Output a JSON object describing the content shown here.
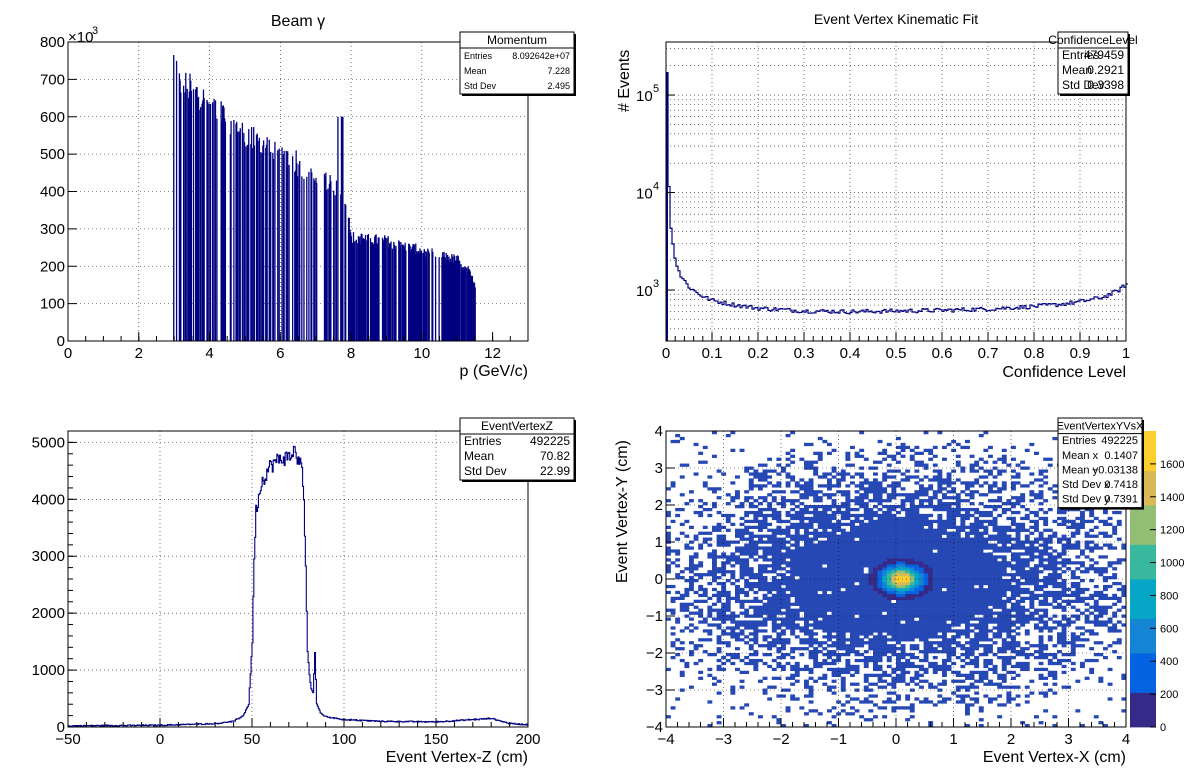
{
  "chart_data": [
    {
      "type": "bar",
      "title": "Beam γ",
      "xlabel": "p (GeV/c)",
      "ylabel": "",
      "xlim": [
        0,
        13
      ],
      "ylim": [
        0,
        800
      ],
      "y_multiplier_label": "×10",
      "y_multiplier_exp": "3",
      "xticks": [
        "0",
        "2",
        "4",
        "6",
        "8",
        "10",
        "12"
      ],
      "yticks": [
        "0",
        "100",
        "200",
        "300",
        "400",
        "500",
        "600",
        "700",
        "800"
      ],
      "grid": true,
      "color": "#000080",
      "stats": {
        "title": "Momentum",
        "rows": [
          {
            "label": "Entries",
            "value": "8.092642e+07"
          },
          {
            "label": "Mean",
            "value": "7.228"
          },
          {
            "label": "Std Dev",
            "value": "2.495"
          }
        ]
      },
      "envelope": [
        [
          2.95,
          770
        ],
        [
          3.1,
          700
        ],
        [
          3.5,
          680
        ],
        [
          4.0,
          640
        ],
        [
          4.5,
          600
        ],
        [
          5.0,
          560
        ],
        [
          5.5,
          530
        ],
        [
          6.0,
          500
        ],
        [
          6.5,
          470
        ],
        [
          7.0,
          450
        ],
        [
          7.5,
          420
        ],
        [
          7.8,
          400
        ],
        [
          8.0,
          280
        ],
        [
          8.5,
          275
        ],
        [
          9.0,
          270
        ],
        [
          9.5,
          255
        ],
        [
          10.0,
          245
        ],
        [
          10.5,
          230
        ],
        [
          11.0,
          220
        ],
        [
          11.3,
          190
        ],
        [
          11.5,
          150
        ]
      ],
      "spikes_note": "sparse populated bins with empty bins between"
    },
    {
      "type": "line",
      "title": "Event Vertex Kinematic Fit",
      "xlabel": "Confidence Level",
      "ylabel": "# Events",
      "xlim": [
        0,
        1
      ],
      "ylim": [
        300,
        350000
      ],
      "log_y": true,
      "xticks": [
        "0",
        "0.1",
        "0.2",
        "0.3",
        "0.4",
        "0.5",
        "0.6",
        "0.7",
        "0.8",
        "0.9",
        "1"
      ],
      "yticks": [
        {
          "base": "10",
          "exp": "3",
          "value": 1000
        },
        {
          "base": "10",
          "exp": "4",
          "value": 10000
        },
        {
          "base": "10",
          "exp": "5",
          "value": 100000
        }
      ],
      "grid": true,
      "color": "#000080",
      "stats": {
        "title": "ConfidenceLevel",
        "rows": [
          {
            "label": "Entries",
            "value": "479459"
          },
          {
            "label": "Mean",
            "value": "0.2921"
          },
          {
            "label": "Std Dev",
            "value": "0.3398"
          }
        ]
      },
      "x": [
        0.0,
        0.005,
        0.01,
        0.02,
        0.03,
        0.05,
        0.08,
        0.1,
        0.15,
        0.2,
        0.3,
        0.4,
        0.5,
        0.6,
        0.7,
        0.8,
        0.85,
        0.9,
        0.95,
        0.98,
        1.0
      ],
      "y": [
        170000,
        8000,
        3500,
        1900,
        1400,
        1050,
        850,
        780,
        700,
        650,
        610,
        600,
        610,
        620,
        640,
        680,
        710,
        760,
        850,
        980,
        1150
      ]
    },
    {
      "type": "line",
      "title": "",
      "xlabel": "Event Vertex-Z (cm)",
      "ylabel": "",
      "xlim": [
        -50,
        200
      ],
      "ylim": [
        0,
        5200
      ],
      "xticks": [
        "−50",
        "0",
        "50",
        "100",
        "150",
        "200"
      ],
      "yticks": [
        "0",
        "1000",
        "2000",
        "3000",
        "4000",
        "5000"
      ],
      "grid": true,
      "color": "#000080",
      "stats": {
        "title": "EventVertexZ",
        "rows": [
          {
            "label": "Entries",
            "value": "492225"
          },
          {
            "label": "Mean",
            "value": "70.82"
          },
          {
            "label": "Std Dev",
            "value": "22.99"
          }
        ]
      },
      "x": [
        -50,
        -30,
        0,
        30,
        40,
        45,
        48,
        50,
        51,
        52,
        55,
        60,
        65,
        70,
        73,
        75,
        77,
        78,
        79,
        80,
        81,
        82,
        83,
        84,
        85,
        87,
        90,
        100,
        120,
        150,
        180,
        190,
        200
      ],
      "y": [
        20,
        25,
        30,
        60,
        100,
        200,
        400,
        1500,
        3000,
        3800,
        4300,
        4600,
        4700,
        4750,
        4850,
        4700,
        4500,
        4000,
        2800,
        1300,
        900,
        700,
        600,
        1300,
        400,
        250,
        180,
        130,
        100,
        90,
        150,
        60,
        40
      ]
    },
    {
      "type": "heatmap",
      "title": "",
      "xlabel": "Event Vertex-X (cm)",
      "ylabel": "Event Vertex-Y (cm)",
      "xlim": [
        -4,
        4
      ],
      "ylim": [
        -4,
        4
      ],
      "zlim": [
        0,
        1800
      ],
      "xticks": [
        "−4",
        "−3",
        "−2",
        "−1",
        "0",
        "1",
        "2",
        "3",
        "4"
      ],
      "yticks": [
        "−4",
        "−3",
        "−2",
        "−1",
        "0",
        "1",
        "2",
        "3",
        "4"
      ],
      "zticks": [
        "0",
        "200",
        "400",
        "600",
        "800",
        "1000",
        "1200",
        "1400",
        "1600"
      ],
      "grid": true,
      "stats": {
        "title": "EventVertexYVsX",
        "rows": [
          {
            "label": "Entries",
            "value": "492225"
          },
          {
            "label": "Mean x",
            "value": "0.1407"
          },
          {
            "label": "Mean y",
            "value": "−0.03138"
          },
          {
            "label": "Std Dev x",
            "value": "0.7418"
          },
          {
            "label": "Std Dev y",
            "value": "0.7391"
          }
        ]
      },
      "peak": {
        "x": 0.1,
        "y": 0.0,
        "value": 1800
      },
      "core_sigma": 0.22,
      "palette": [
        "#352a87",
        "#0363e1",
        "#1485d4",
        "#06a7c6",
        "#38b99e",
        "#92bf73",
        "#d9ba56",
        "#fcce2e",
        "#f9fb0e"
      ]
    }
  ]
}
